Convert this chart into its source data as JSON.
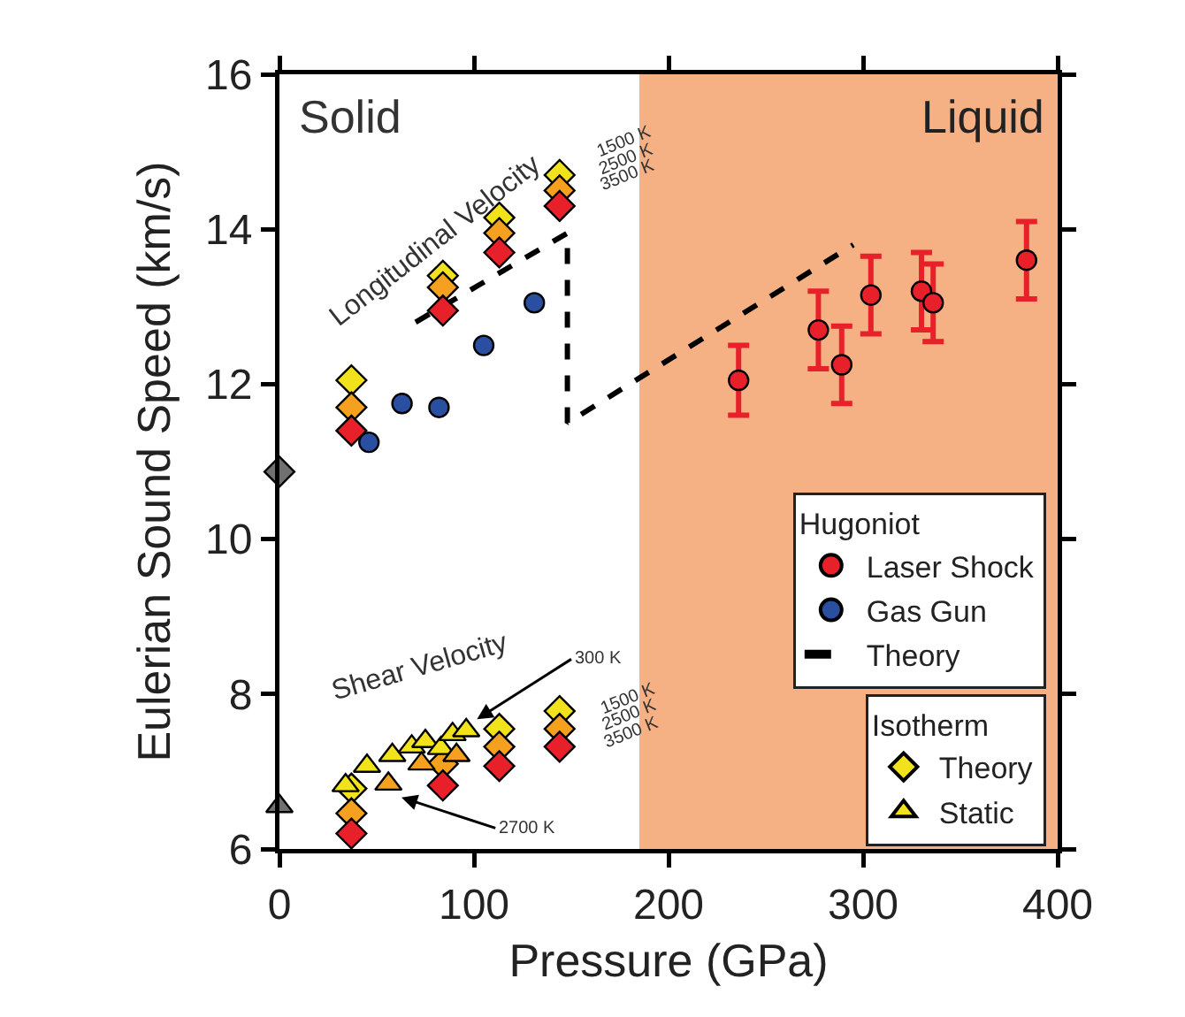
{
  "chart_data": {
    "type": "scatter",
    "xlabel": "Pressure (GPa)",
    "ylabel": "Eulerian Sound Speed (km/s)",
    "xlim": [
      0,
      400
    ],
    "xticks": [
      0,
      100,
      200,
      300,
      400
    ],
    "ylim": [
      6,
      16
    ],
    "yticks": [
      6,
      8,
      10,
      12,
      14,
      16
    ],
    "grid": false,
    "legend": "bottom right",
    "legend_title": [
      "Hugoniot",
      "Isotherm"
    ],
    "bands": [
      {
        "axis": "x",
        "from": 185,
        "to": 400,
        "label": "Liquid",
        "color": "#f5b183"
      }
    ],
    "annotations": [
      "Solid",
      "Longitudinal Velocity",
      "1500 K",
      "2500 K",
      "3500 K",
      "Shear Velocity",
      "1500 K",
      "2500 K",
      "3500 K",
      {
        "text": "300 K",
        "x": 100,
        "y": 7.65
      },
      {
        "text": "2700 K",
        "x": 61,
        "y": 6.68
      }
    ],
    "series": [
      {
        "name": "Laser Shock",
        "type": "scatter",
        "marker": "circle",
        "color": "#e8202a",
        "x": [
          236,
          277,
          289,
          304,
          330,
          336,
          384
        ],
        "values": [
          12.05,
          12.7,
          12.25,
          13.15,
          13.2,
          13.05,
          13.6
        ],
        "errors": [
          0.45,
          0.5,
          0.5,
          0.5,
          0.5,
          0.5,
          0.5
        ]
      },
      {
        "name": "Gas Gun",
        "type": "scatter",
        "marker": "circle",
        "color": "#2a4fa0",
        "x": [
          46,
          63,
          82,
          105,
          131
        ],
        "values": [
          11.25,
          11.75,
          11.7,
          12.5,
          13.05
        ]
      },
      {
        "name": "Theory",
        "type": "line",
        "line_style": "dashed",
        "marker": "none",
        "color": "#000000",
        "x": [
          70,
          148,
          148,
          295
        ],
        "values": [
          12.8,
          13.95,
          11.5,
          13.8
        ]
      },
      {
        "name": "Theory",
        "type": "scatter",
        "marker": "diamond",
        "color": "#f2e21c",
        "x": [
          37,
          84,
          113,
          144,
          37,
          84,
          113,
          144
        ],
        "values": [
          12.05,
          13.4,
          14.15,
          14.7,
          6.78,
          null,
          7.55,
          7.78
        ]
      },
      {
        "type": "scatter",
        "marker": "diamond",
        "color": "#f5a01e",
        "x": [
          37,
          84,
          113,
          144,
          37,
          84,
          113,
          144
        ],
        "values": [
          11.7,
          13.25,
          13.95,
          14.5,
          6.46,
          7.1,
          7.32,
          7.55
        ]
      },
      {
        "type": "scatter",
        "marker": "diamond",
        "color": "#e8202a",
        "x": [
          37,
          84,
          113,
          144,
          37,
          84,
          113,
          144
        ],
        "values": [
          11.4,
          12.95,
          13.7,
          14.3,
          6.2,
          6.82,
          7.07,
          7.32
        ]
      },
      {
        "name": "Static",
        "type": "scatter",
        "marker": "triangle",
        "color": "#f2e21c",
        "x": [
          34,
          45,
          58,
          68,
          75,
          83,
          89,
          96,
          73,
          91,
          56
        ],
        "values": [
          6.82,
          7.07,
          7.21,
          7.32,
          7.39,
          7.3,
          7.48,
          7.53,
          7.1,
          7.21,
          6.84
        ],
        "colors": [
          null,
          null,
          null,
          null,
          null,
          null,
          null,
          null,
          "#f5a01e",
          "#f5a01e",
          "#f5a01e"
        ]
      },
      {
        "type": "scatter",
        "marker": "diamond",
        "color": "#707070",
        "x": [
          0
        ],
        "values": [
          10.87
        ]
      },
      {
        "type": "scatter",
        "marker": "triangle",
        "color": "#707070",
        "x": [
          0
        ],
        "values": [
          6.55
        ]
      }
    ]
  }
}
